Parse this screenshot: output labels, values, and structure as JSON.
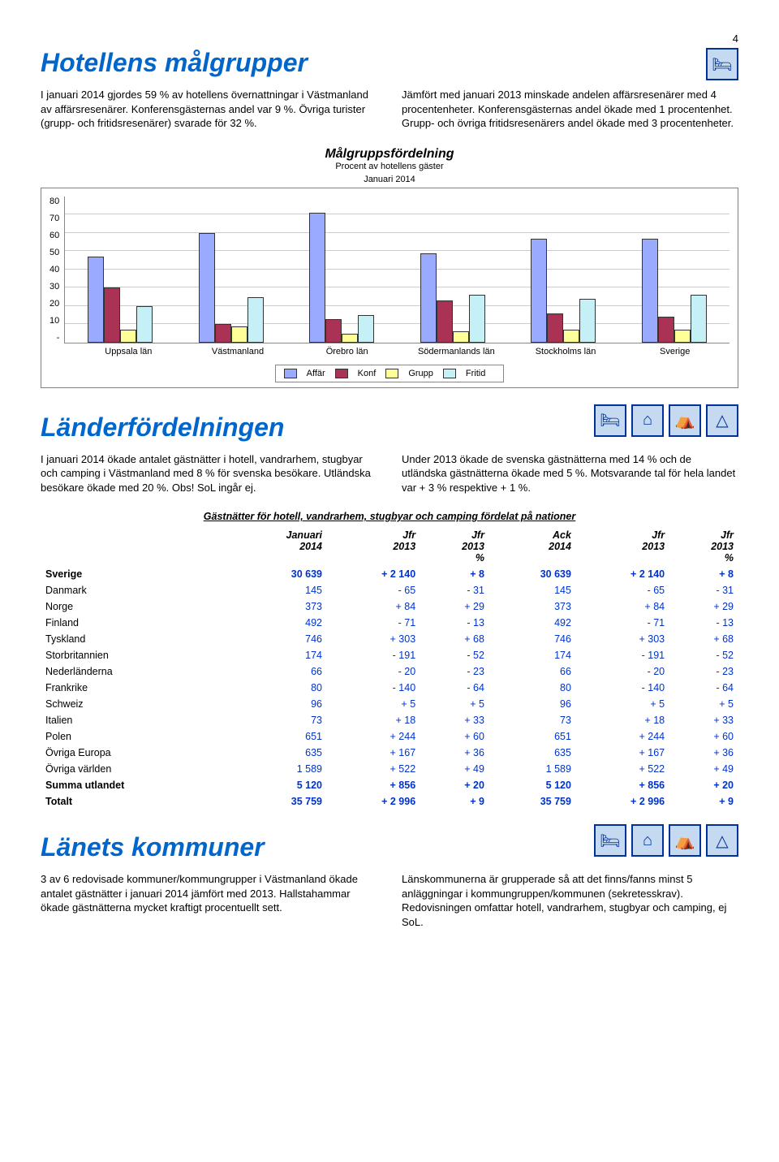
{
  "page_number": "4",
  "section1": {
    "title": "Hotellens målgrupper",
    "left": "I januari 2014 gjordes 59 % av hotellens övernattningar i Västmanland av affärsresenärer. Konferensgästernas andel var 9 %. Övriga turister (grupp- och fritidsresenärer) svarade för 32 %.",
    "right": "Jämfört med januari 2013 minskade andelen affärsresenärer med 4 procentenheter. Konferensgästernas andel ökade med 1 procentenhet. Grupp- och övriga fritidsresenärers andel ökade med 3 procentenheter."
  },
  "chart": {
    "title": "Målgruppsfördelning",
    "sub1": "Procent av hotellens gäster",
    "sub2": "Januari 2014",
    "ymax": 80,
    "yticks": [
      "80",
      "70",
      "60",
      "50",
      "40",
      "30",
      "20",
      "10",
      "-"
    ],
    "categories": [
      "Uppsala län",
      "Västmanland",
      "Örebro län",
      "Södermanlands län",
      "Stockholms län",
      "Sverige"
    ],
    "series": [
      {
        "label": "Affär",
        "color": "#99aaff",
        "values": [
          46,
          59,
          70,
          48,
          56,
          56
        ]
      },
      {
        "label": "Konf",
        "color": "#aa3355",
        "values": [
          29,
          9,
          12,
          22,
          15,
          13
        ]
      },
      {
        "label": "Grupp",
        "color": "#ffff99",
        "values": [
          6,
          8,
          4,
          5,
          6,
          6
        ]
      },
      {
        "label": "Fritid",
        "color": "#c5f0f5",
        "values": [
          19,
          24,
          14,
          25,
          23,
          25
        ]
      }
    ]
  },
  "section2": {
    "title": "Länderfördelningen",
    "left": "I januari 2014 ökade antalet gästnätter i hotell, vandrarhem, stugbyar och camping i Västmanland med 8 % för svenska besökare. Utländska besökare ökade med 20 %. Obs! SoL ingår ej.",
    "right": "Under 2013 ökade de svenska gästnätterna med 14 % och de utländska gästnätterna ökade med 5 %. Motsvarande tal för hela landet var + 3 % respektive + 1 %."
  },
  "table": {
    "title": "Gästnätter för hotell, vandrarhem, stugbyar och camping fördelat på nationer",
    "headers": [
      "",
      "Januari 2014",
      "Jfr 2013",
      "Jfr 2013 %",
      "Ack 2014",
      "Jfr 2013",
      "Jfr 2013 %"
    ],
    "rows": [
      {
        "c": [
          "Sverige",
          "30 639",
          "+ 2 140",
          "+ 8",
          "30 639",
          "+ 2 140",
          "+ 8"
        ],
        "blue": true,
        "bold": true
      },
      {
        "c": [
          "Danmark",
          "145",
          "- 65",
          "- 31",
          "145",
          "- 65",
          "- 31"
        ],
        "blue": true
      },
      {
        "c": [
          "Norge",
          "373",
          "+ 84",
          "+ 29",
          "373",
          "+ 84",
          "+ 29"
        ],
        "blue": true
      },
      {
        "c": [
          "Finland",
          "492",
          "- 71",
          "- 13",
          "492",
          "- 71",
          "- 13"
        ],
        "blue": true
      },
      {
        "c": [
          "Tyskland",
          "746",
          "+ 303",
          "+ 68",
          "746",
          "+ 303",
          "+ 68"
        ],
        "blue": true
      },
      {
        "c": [
          "Storbritannien",
          "174",
          "- 191",
          "- 52",
          "174",
          "- 191",
          "- 52"
        ],
        "blue": true
      },
      {
        "c": [
          "Nederländerna",
          "66",
          "- 20",
          "- 23",
          "66",
          "- 20",
          "- 23"
        ],
        "blue": true
      },
      {
        "c": [
          "Frankrike",
          "80",
          "- 140",
          "- 64",
          "80",
          "- 140",
          "- 64"
        ],
        "blue": true
      },
      {
        "c": [
          "Schweiz",
          "96",
          "+ 5",
          "+ 5",
          "96",
          "+ 5",
          "+ 5"
        ],
        "blue": true
      },
      {
        "c": [
          "Italien",
          "73",
          "+ 18",
          "+ 33",
          "73",
          "+ 18",
          "+ 33"
        ],
        "blue": true
      },
      {
        "c": [
          "Polen",
          "651",
          "+ 244",
          "+ 60",
          "651",
          "+ 244",
          "+ 60"
        ],
        "blue": true
      },
      {
        "c": [
          "Övriga Europa",
          "635",
          "+ 167",
          "+ 36",
          "635",
          "+ 167",
          "+ 36"
        ],
        "blue": true
      },
      {
        "c": [
          "Övriga världen",
          "1 589",
          "+ 522",
          "+ 49",
          "1 589",
          "+ 522",
          "+ 49"
        ],
        "blue": true
      },
      {
        "c": [
          "Summa utlandet",
          "5 120",
          "+ 856",
          "+ 20",
          "5 120",
          "+ 856",
          "+ 20"
        ],
        "blue": true,
        "bold": true
      },
      {
        "c": [
          "Totalt",
          "35 759",
          "+ 2 996",
          "+ 9",
          "35 759",
          "+ 2 996",
          "+ 9"
        ],
        "blue": true,
        "bold": true
      }
    ]
  },
  "section3": {
    "title": "Länets kommuner",
    "left": "3 av 6 redovisade kommuner/kommungrupper i Västmanland ökade antalet gästnätter i januari 2014 jämfört med 2013. Hallstahammar ökade gästnätterna mycket kraftigt procentuellt sett.",
    "right": "Länskommunerna är grupperade så att det finns/fanns minst 5 anläggningar i kommungruppen/kommunen (sekretesskrav). Redovisningen omfattar hotell, vandrarhem, stugbyar och camping, ej SoL."
  },
  "icons": {
    "bed": "🛏",
    "house": "⌂",
    "cabin": "⛺",
    "tent": "△"
  }
}
